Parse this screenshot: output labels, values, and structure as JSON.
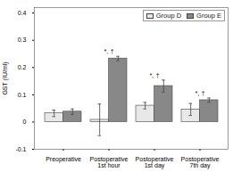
{
  "chart_data": {
    "type": "bar",
    "categories": [
      "Preoperative",
      "Postoperative\n1st hour",
      "Postoperative\n1st day",
      "Postoperative\n7th day"
    ],
    "series": [
      {
        "name": "Group D",
        "color": "#e8e8e8",
        "values": [
          0.032,
          0.008,
          0.06,
          0.046
        ],
        "errors": [
          0.012,
          0.058,
          0.012,
          0.022
        ]
      },
      {
        "name": "Group E",
        "color": "#888888",
        "values": [
          0.038,
          0.233,
          0.132,
          0.08
        ],
        "errors": [
          0.01,
          0.008,
          0.022,
          0.008
        ]
      }
    ],
    "ylabel": "GST (IU/ml)",
    "ylim": [
      -0.1,
      0.42
    ],
    "yticks": [
      -0.1,
      0,
      0.1,
      0.2,
      0.3,
      0.4
    ],
    "annotations": [
      {
        "x": "Postoperative\n1st hour",
        "series": "Group E",
        "text": "*, †"
      },
      {
        "x": "Postoperative\n1st day",
        "series": "Group E",
        "text": "*, †"
      },
      {
        "x": "Postoperative\n7th day",
        "series": "Group E",
        "text": "*, †"
      }
    ],
    "legend": "upper right",
    "grid": false
  }
}
